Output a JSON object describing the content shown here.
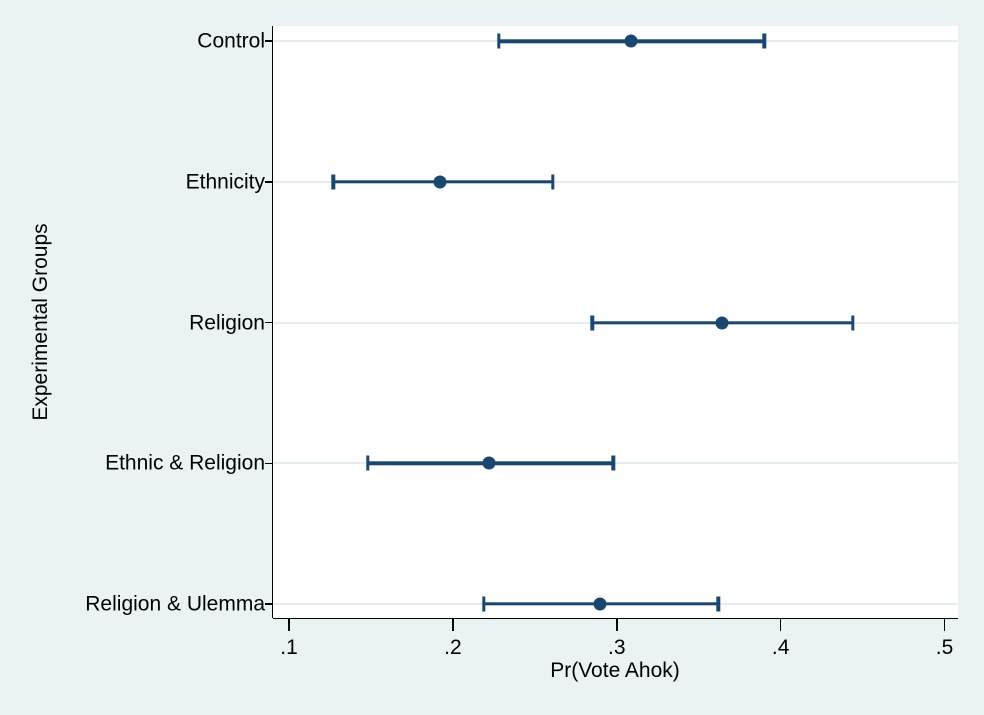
{
  "chart_data": {
    "type": "scatter",
    "subtype": "coefficient-plot-with-confidence-intervals",
    "title": "",
    "xlabel": "Pr(Vote Ahok)",
    "ylabel": "Experimental Groups",
    "categories": [
      "Control",
      "Ethnicity",
      "Religion",
      "Ethnic & Religion",
      "Religion & Ulemma"
    ],
    "series": [
      {
        "name": "Pr(Vote Ahok)",
        "estimates": [
          0.309,
          0.192,
          0.364,
          0.222,
          0.29
        ],
        "ci_low": [
          0.228,
          0.127,
          0.285,
          0.148,
          0.219
        ],
        "ci_high": [
          0.39,
          0.261,
          0.444,
          0.298,
          0.362
        ]
      }
    ],
    "x_ticks": [
      {
        "value": 0.1,
        "label": ".1"
      },
      {
        "value": 0.2,
        "label": ".2"
      },
      {
        "value": 0.3,
        "label": ".3"
      },
      {
        "value": 0.4,
        "label": ".4"
      },
      {
        "value": 0.5,
        "label": ".5"
      }
    ],
    "xlim": [
      0.1,
      0.5
    ],
    "grid": "horizontal-only",
    "legend": "none",
    "colors": {
      "marker": "#1a476f",
      "ci_line": "#1a476f",
      "background": "#eaf2f3",
      "plot_background": "#ffffff",
      "gridline": "#e4edf2",
      "axis": "#000000",
      "text": "#000000"
    }
  }
}
